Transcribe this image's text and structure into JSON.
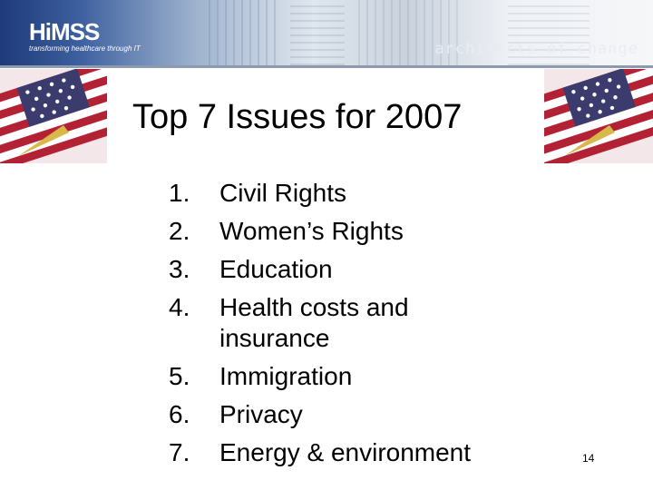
{
  "header": {
    "logo_text": "HiMSS",
    "logo_tagline": "transforming healthcare through IT",
    "tagline": "architects of change"
  },
  "slide": {
    "title": "Top 7 Issues for 2007",
    "issues": [
      {
        "num": "1.",
        "text": "Civil Rights"
      },
      {
        "num": "2.",
        "text": "Women’s Rights"
      },
      {
        "num": "3.",
        "text": "Education"
      },
      {
        "num": "4.",
        "text": "Health costs and insurance"
      },
      {
        "num": "5.",
        "text": "Immigration"
      },
      {
        "num": "6.",
        "text": "Privacy"
      },
      {
        "num": "7.",
        "text": "Energy & environment"
      }
    ],
    "page_number": "14"
  },
  "colors": {
    "banner_blue": "#1f3a7a",
    "flag_red": "#b22234",
    "flag_blue": "#3c3b6e"
  }
}
